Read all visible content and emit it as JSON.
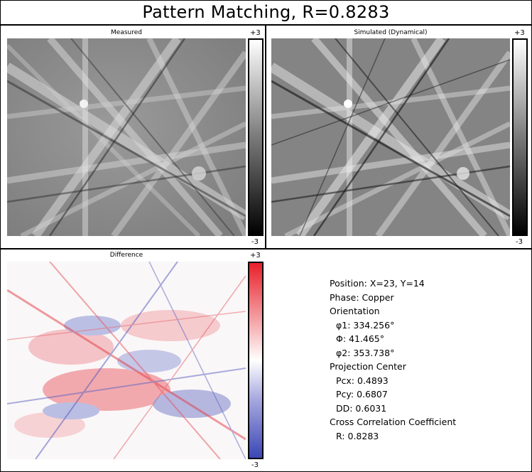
{
  "title": "Pattern Matching, R=0.8283",
  "panels": {
    "measured": {
      "label": "Measured",
      "scale_max": "+3",
      "scale_min": "-3"
    },
    "simulated": {
      "label": "Simulated (Dynamical)",
      "scale_max": "+3",
      "scale_min": "-3"
    },
    "difference": {
      "label": "Difference",
      "scale_max": "+3",
      "scale_min": "-3"
    }
  },
  "colors": {
    "diff_positive": "#e8202a",
    "diff_zero": "#ffffff",
    "diff_negative": "#3b47b5"
  },
  "info": {
    "position": "Position: X=23, Y=14",
    "phase": "Phase: Copper",
    "orientation_header": "Orientation",
    "phi1": "φ1: 334.256°",
    "Phi": "Φ: 41.465°",
    "phi2": "φ2: 353.738°",
    "projection_header": "Projection Center",
    "pcx": "Pcx: 0.4893",
    "pcy": "Pcy: 0.6807",
    "dd": "DD: 0.6031",
    "cc_header": "Cross Correlation Coefficient",
    "r": "R: 0.8283"
  }
}
